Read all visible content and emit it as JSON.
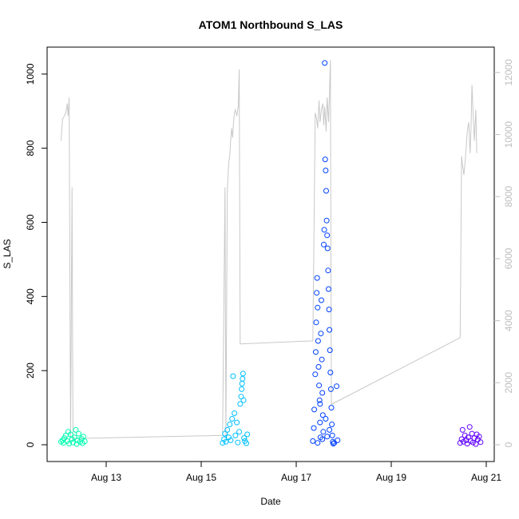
{
  "chart_data": {
    "type": "scatter",
    "title": "ATOM1 Northbound S_LAS",
    "xlabel": "Date",
    "ylabel": "S_LAS",
    "x_unit": "days",
    "x_ticks": [
      {
        "value": 13,
        "label": "Aug 13"
      },
      {
        "value": 15,
        "label": "Aug 15"
      },
      {
        "value": 17,
        "label": "Aug 17"
      },
      {
        "value": 19,
        "label": "Aug 19"
      },
      {
        "value": 21,
        "label": "Aug 21"
      }
    ],
    "xlim": [
      12,
      21
    ],
    "ylim": [
      0,
      1050
    ],
    "yticks": [
      0,
      200,
      400,
      600,
      800,
      1000
    ],
    "y2_ticks": [
      0,
      2000,
      4000,
      6000,
      8000,
      10000,
      12000
    ],
    "y2lim": [
      0,
      12500
    ],
    "grid": false,
    "colors": {
      "line": "#c8c8c8",
      "secondary_axis": "#bebebe",
      "cluster_aug12": "#00ffb0",
      "cluster_aug15": "#00c0ff",
      "cluster_aug17": "#0040ff",
      "cluster_aug20": "#6000ff"
    },
    "points": [
      {
        "x": 12.05,
        "y": 8,
        "c": "#00ffb0"
      },
      {
        "x": 12.08,
        "y": 12,
        "c": "#00ffb0"
      },
      {
        "x": 12.1,
        "y": 5,
        "c": "#00ffb0"
      },
      {
        "x": 12.12,
        "y": 18,
        "c": "#00ffb0"
      },
      {
        "x": 12.15,
        "y": 25,
        "c": "#00ffb0"
      },
      {
        "x": 12.18,
        "y": 10,
        "c": "#00ffb0"
      },
      {
        "x": 12.2,
        "y": 35,
        "c": "#00ffb0"
      },
      {
        "x": 12.22,
        "y": 3,
        "c": "#00ffb0"
      },
      {
        "x": 12.25,
        "y": 28,
        "c": "#00ffb0"
      },
      {
        "x": 12.28,
        "y": 15,
        "c": "#00ffb0"
      },
      {
        "x": 12.3,
        "y": 6,
        "c": "#00ffb0"
      },
      {
        "x": 12.33,
        "y": 20,
        "c": "#00ffb0"
      },
      {
        "x": 12.36,
        "y": 40,
        "c": "#00ffb0"
      },
      {
        "x": 12.38,
        "y": 2,
        "c": "#00ffb0"
      },
      {
        "x": 12.4,
        "y": 12,
        "c": "#00ffb0"
      },
      {
        "x": 12.42,
        "y": 30,
        "c": "#00ffb0"
      },
      {
        "x": 12.45,
        "y": 8,
        "c": "#00ffb0"
      },
      {
        "x": 12.48,
        "y": 16,
        "c": "#00ffb0"
      },
      {
        "x": 12.5,
        "y": 4,
        "c": "#00ffb0"
      },
      {
        "x": 12.52,
        "y": 22,
        "c": "#00ffb0"
      },
      {
        "x": 12.55,
        "y": 9,
        "c": "#00ffb0"
      },
      {
        "x": 15.45,
        "y": 5,
        "c": "#00c0ff"
      },
      {
        "x": 15.48,
        "y": 15,
        "c": "#00c0ff"
      },
      {
        "x": 15.5,
        "y": 30,
        "c": "#00c0ff"
      },
      {
        "x": 15.52,
        "y": 8,
        "c": "#00c0ff"
      },
      {
        "x": 15.55,
        "y": 40,
        "c": "#00c0ff"
      },
      {
        "x": 15.58,
        "y": 20,
        "c": "#00c0ff"
      },
      {
        "x": 15.6,
        "y": 55,
        "c": "#00c0ff"
      },
      {
        "x": 15.62,
        "y": 12,
        "c": "#00c0ff"
      },
      {
        "x": 15.65,
        "y": 70,
        "c": "#00c0ff"
      },
      {
        "x": 15.67,
        "y": 185,
        "c": "#00c0ff"
      },
      {
        "x": 15.7,
        "y": 85,
        "c": "#00c0ff"
      },
      {
        "x": 15.72,
        "y": 25,
        "c": "#00c0ff"
      },
      {
        "x": 15.75,
        "y": 60,
        "c": "#00c0ff"
      },
      {
        "x": 15.77,
        "y": 6,
        "c": "#00c0ff"
      },
      {
        "x": 15.8,
        "y": 35,
        "c": "#00c0ff"
      },
      {
        "x": 15.82,
        "y": 110,
        "c": "#00c0ff"
      },
      {
        "x": 15.84,
        "y": 130,
        "c": "#00c0ff"
      },
      {
        "x": 15.85,
        "y": 150,
        "c": "#00c0ff"
      },
      {
        "x": 15.86,
        "y": 165,
        "c": "#00c0ff"
      },
      {
        "x": 15.87,
        "y": 178,
        "c": "#00c0ff"
      },
      {
        "x": 15.88,
        "y": 192,
        "c": "#00c0ff"
      },
      {
        "x": 15.89,
        "y": 120,
        "c": "#00c0ff"
      },
      {
        "x": 15.9,
        "y": 18,
        "c": "#00c0ff"
      },
      {
        "x": 15.92,
        "y": 10,
        "c": "#00c0ff"
      },
      {
        "x": 15.95,
        "y": 4,
        "c": "#00c0ff"
      },
      {
        "x": 15.97,
        "y": 28,
        "c": "#00c0ff"
      },
      {
        "x": 17.35,
        "y": 10,
        "c": "#0040ff"
      },
      {
        "x": 17.37,
        "y": 45,
        "c": "#0040ff"
      },
      {
        "x": 17.38,
        "y": 95,
        "c": "#0040ff"
      },
      {
        "x": 17.4,
        "y": 190,
        "c": "#0040ff"
      },
      {
        "x": 17.41,
        "y": 250,
        "c": "#0040ff"
      },
      {
        "x": 17.42,
        "y": 330,
        "c": "#0040ff"
      },
      {
        "x": 17.43,
        "y": 410,
        "c": "#0040ff"
      },
      {
        "x": 17.44,
        "y": 450,
        "c": "#0040ff"
      },
      {
        "x": 17.45,
        "y": 370,
        "c": "#0040ff"
      },
      {
        "x": 17.46,
        "y": 280,
        "c": "#0040ff"
      },
      {
        "x": 17.47,
        "y": 210,
        "c": "#0040ff"
      },
      {
        "x": 17.48,
        "y": 160,
        "c": "#0040ff"
      },
      {
        "x": 17.49,
        "y": 120,
        "c": "#0040ff"
      },
      {
        "x": 17.5,
        "y": 60,
        "c": "#0040ff"
      },
      {
        "x": 17.51,
        "y": 20,
        "c": "#0040ff"
      },
      {
        "x": 17.52,
        "y": 300,
        "c": "#0040ff"
      },
      {
        "x": 17.53,
        "y": 390,
        "c": "#0040ff"
      },
      {
        "x": 17.54,
        "y": 230,
        "c": "#0040ff"
      },
      {
        "x": 17.55,
        "y": 140,
        "c": "#0040ff"
      },
      {
        "x": 17.56,
        "y": 80,
        "c": "#0040ff"
      },
      {
        "x": 17.57,
        "y": 35,
        "c": "#0040ff"
      },
      {
        "x": 17.58,
        "y": 540,
        "c": "#0040ff"
      },
      {
        "x": 17.59,
        "y": 580,
        "c": "#0040ff"
      },
      {
        "x": 17.6,
        "y": 1030,
        "c": "#0040ff"
      },
      {
        "x": 17.61,
        "y": 770,
        "c": "#0040ff"
      },
      {
        "x": 17.62,
        "y": 740,
        "c": "#0040ff"
      },
      {
        "x": 17.63,
        "y": 685,
        "c": "#0040ff"
      },
      {
        "x": 17.64,
        "y": 605,
        "c": "#0040ff"
      },
      {
        "x": 17.65,
        "y": 565,
        "c": "#0040ff"
      },
      {
        "x": 17.66,
        "y": 530,
        "c": "#0040ff"
      },
      {
        "x": 17.67,
        "y": 470,
        "c": "#0040ff"
      },
      {
        "x": 17.68,
        "y": 420,
        "c": "#0040ff"
      },
      {
        "x": 17.69,
        "y": 365,
        "c": "#0040ff"
      },
      {
        "x": 17.7,
        "y": 310,
        "c": "#0040ff"
      },
      {
        "x": 17.71,
        "y": 255,
        "c": "#0040ff"
      },
      {
        "x": 17.72,
        "y": 195,
        "c": "#0040ff"
      },
      {
        "x": 17.73,
        "y": 150,
        "c": "#0040ff"
      },
      {
        "x": 17.74,
        "y": 100,
        "c": "#0040ff"
      },
      {
        "x": 17.75,
        "y": 55,
        "c": "#0040ff"
      },
      {
        "x": 17.76,
        "y": 25,
        "c": "#0040ff"
      },
      {
        "x": 17.77,
        "y": 8,
        "c": "#0040ff"
      },
      {
        "x": 17.78,
        "y": 3,
        "c": "#0040ff"
      },
      {
        "x": 17.8,
        "y": 5,
        "c": "#0040ff"
      },
      {
        "x": 17.85,
        "y": 158,
        "c": "#0040ff"
      },
      {
        "x": 17.87,
        "y": 12,
        "c": "#0040ff"
      },
      {
        "x": 17.45,
        "y": 5,
        "c": "#0040ff"
      },
      {
        "x": 17.55,
        "y": 15,
        "c": "#0040ff"
      },
      {
        "x": 17.65,
        "y": 22,
        "c": "#0040ff"
      },
      {
        "x": 17.7,
        "y": 40,
        "c": "#0040ff"
      },
      {
        "x": 17.62,
        "y": 70,
        "c": "#0040ff"
      },
      {
        "x": 17.5,
        "y": 110,
        "c": "#0040ff"
      },
      {
        "x": 20.45,
        "y": 5,
        "c": "#6000ff"
      },
      {
        "x": 20.48,
        "y": 15,
        "c": "#6000ff"
      },
      {
        "x": 20.5,
        "y": 40,
        "c": "#6000ff"
      },
      {
        "x": 20.52,
        "y": 8,
        "c": "#6000ff"
      },
      {
        "x": 20.55,
        "y": 25,
        "c": "#6000ff"
      },
      {
        "x": 20.58,
        "y": 12,
        "c": "#6000ff"
      },
      {
        "x": 20.6,
        "y": 3,
        "c": "#6000ff"
      },
      {
        "x": 20.62,
        "y": 20,
        "c": "#6000ff"
      },
      {
        "x": 20.65,
        "y": 48,
        "c": "#6000ff"
      },
      {
        "x": 20.67,
        "y": 10,
        "c": "#6000ff"
      },
      {
        "x": 20.7,
        "y": 30,
        "c": "#6000ff"
      },
      {
        "x": 20.72,
        "y": 6,
        "c": "#6000ff"
      },
      {
        "x": 20.75,
        "y": 18,
        "c": "#6000ff"
      },
      {
        "x": 20.78,
        "y": 2,
        "c": "#6000ff"
      },
      {
        "x": 20.8,
        "y": 28,
        "c": "#6000ff"
      },
      {
        "x": 20.82,
        "y": 14,
        "c": "#6000ff"
      },
      {
        "x": 20.85,
        "y": 22,
        "c": "#6000ff"
      },
      {
        "x": 20.88,
        "y": 7,
        "c": "#6000ff"
      }
    ],
    "line": [
      [
        12.05,
        9800
      ],
      [
        12.08,
        10500
      ],
      [
        12.12,
        10600
      ],
      [
        12.15,
        10700
      ],
      [
        12.18,
        11000
      ],
      [
        12.2,
        10600
      ],
      [
        12.22,
        11200
      ],
      [
        12.25,
        200
      ],
      [
        12.28,
        8300
      ],
      [
        12.3,
        200
      ],
      [
        15.45,
        300
      ],
      [
        15.5,
        8300
      ],
      [
        15.52,
        200
      ],
      [
        15.55,
        8200
      ],
      [
        15.58,
        9100
      ],
      [
        15.6,
        9300
      ],
      [
        15.62,
        9800
      ],
      [
        15.64,
        10200
      ],
      [
        15.66,
        9900
      ],
      [
        15.68,
        10400
      ],
      [
        15.7,
        10700
      ],
      [
        15.72,
        10800
      ],
      [
        15.75,
        10600
      ],
      [
        15.78,
        10900
      ],
      [
        15.8,
        12100
      ],
      [
        15.82,
        3250
      ],
      [
        17.35,
        3350
      ],
      [
        17.4,
        10700
      ],
      [
        17.43,
        10500
      ],
      [
        17.45,
        10200
      ],
      [
        17.48,
        11100
      ],
      [
        17.5,
        10400
      ],
      [
        17.53,
        10800
      ],
      [
        17.56,
        11000
      ],
      [
        17.58,
        10300
      ],
      [
        17.6,
        10900
      ],
      [
        17.63,
        10100
      ],
      [
        17.65,
        11200
      ],
      [
        17.68,
        10400
      ],
      [
        17.7,
        11300
      ],
      [
        17.72,
        12400
      ],
      [
        17.74,
        1300
      ],
      [
        20.45,
        3450
      ],
      [
        20.48,
        9300
      ],
      [
        20.5,
        9000
      ],
      [
        20.53,
        8700
      ],
      [
        20.56,
        9200
      ],
      [
        20.6,
        10100
      ],
      [
        20.63,
        10400
      ],
      [
        20.66,
        9400
      ],
      [
        20.68,
        10300
      ],
      [
        20.7,
        11600
      ],
      [
        20.72,
        10800
      ],
      [
        20.75,
        9800
      ],
      [
        20.78,
        10800
      ],
      [
        20.8,
        9400
      ]
    ]
  }
}
